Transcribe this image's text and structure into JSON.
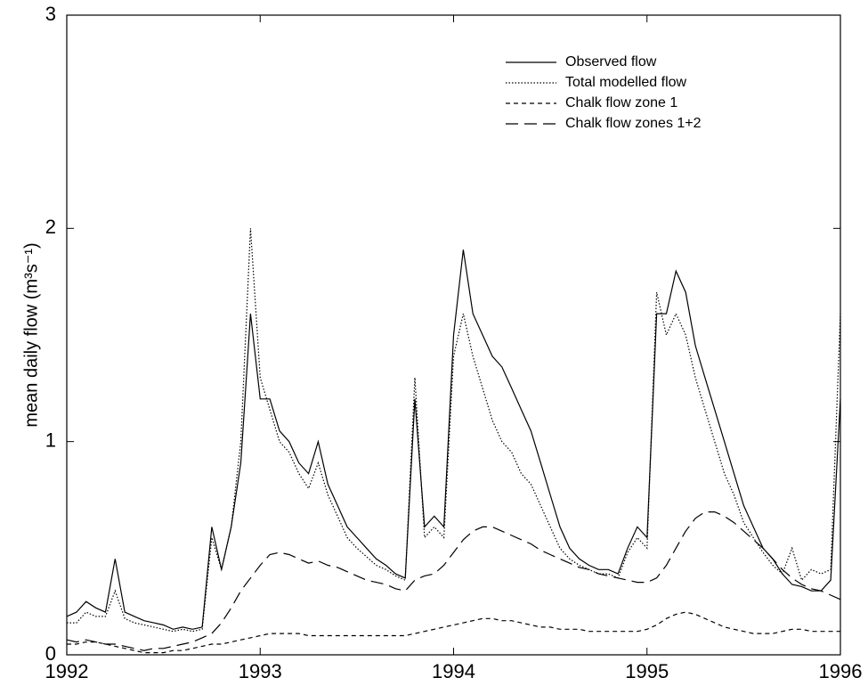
{
  "chart_data": {
    "type": "line",
    "ylabel": "mean daily flow (m³s⁻¹)",
    "x": [
      1992,
      1992.05,
      1992.1,
      1992.15,
      1992.2,
      1992.25,
      1992.3,
      1992.35,
      1992.4,
      1992.45,
      1992.5,
      1992.55,
      1992.6,
      1992.65,
      1992.7,
      1992.75,
      1992.8,
      1992.85,
      1992.9,
      1992.95,
      1993,
      1993.05,
      1993.1,
      1993.15,
      1993.2,
      1993.25,
      1993.3,
      1993.35,
      1993.4,
      1993.45,
      1993.5,
      1993.55,
      1993.6,
      1993.65,
      1993.7,
      1993.75,
      1993.8,
      1993.85,
      1993.9,
      1993.95,
      1994,
      1994.05,
      1994.1,
      1994.15,
      1994.2,
      1994.25,
      1994.3,
      1994.35,
      1994.4,
      1994.45,
      1994.5,
      1994.55,
      1994.6,
      1994.65,
      1994.7,
      1994.75,
      1994.8,
      1994.85,
      1994.9,
      1994.95,
      1995,
      1995.05,
      1995.1,
      1995.15,
      1995.2,
      1995.25,
      1995.3,
      1995.35,
      1995.4,
      1995.45,
      1995.5,
      1995.55,
      1995.6,
      1995.65,
      1995.7,
      1995.75,
      1995.8,
      1995.85,
      1995.9,
      1995.95,
      1996
    ],
    "series": [
      {
        "name": "Observed flow",
        "color": "#000000",
        "linestyle": "solid",
        "values": [
          0.18,
          0.2,
          0.25,
          0.22,
          0.2,
          0.45,
          0.2,
          0.18,
          0.16,
          0.15,
          0.14,
          0.12,
          0.13,
          0.12,
          0.13,
          0.6,
          0.4,
          0.6,
          0.9,
          1.6,
          1.2,
          1.2,
          1.05,
          1.0,
          0.9,
          0.85,
          1.0,
          0.8,
          0.7,
          0.6,
          0.55,
          0.5,
          0.45,
          0.42,
          0.38,
          0.36,
          1.2,
          0.6,
          0.65,
          0.6,
          1.5,
          1.9,
          1.6,
          1.5,
          1.4,
          1.35,
          1.25,
          1.15,
          1.05,
          0.9,
          0.75,
          0.6,
          0.5,
          0.45,
          0.42,
          0.4,
          0.4,
          0.38,
          0.5,
          0.6,
          0.55,
          1.6,
          1.6,
          1.8,
          1.7,
          1.45,
          1.3,
          1.15,
          1.0,
          0.85,
          0.7,
          0.6,
          0.5,
          0.45,
          0.38,
          0.33,
          0.32,
          0.3,
          0.3,
          0.35,
          1.2
        ]
      },
      {
        "name": "Total modelled flow",
        "color": "#000000",
        "linestyle": "dotted",
        "values": [
          0.15,
          0.15,
          0.2,
          0.18,
          0.18,
          0.3,
          0.17,
          0.15,
          0.14,
          0.13,
          0.12,
          0.11,
          0.12,
          0.11,
          0.12,
          0.55,
          0.4,
          0.6,
          1.0,
          2.0,
          1.3,
          1.15,
          1.0,
          0.95,
          0.85,
          0.78,
          0.9,
          0.75,
          0.65,
          0.55,
          0.5,
          0.46,
          0.42,
          0.4,
          0.37,
          0.35,
          1.3,
          0.55,
          0.6,
          0.55,
          1.4,
          1.6,
          1.4,
          1.25,
          1.1,
          1.0,
          0.95,
          0.85,
          0.8,
          0.7,
          0.6,
          0.5,
          0.45,
          0.42,
          0.4,
          0.38,
          0.38,
          0.36,
          0.48,
          0.55,
          0.5,
          1.7,
          1.5,
          1.6,
          1.5,
          1.3,
          1.15,
          1.0,
          0.85,
          0.75,
          0.62,
          0.55,
          0.48,
          0.42,
          0.38,
          0.5,
          0.35,
          0.4,
          0.38,
          0.4,
          1.6
        ]
      },
      {
        "name": "Chalk flow zone 1",
        "color": "#000000",
        "linestyle": "dashed",
        "values": [
          0.05,
          0.05,
          0.06,
          0.06,
          0.05,
          0.04,
          0.03,
          0.02,
          0.01,
          0.01,
          0.01,
          0.02,
          0.02,
          0.03,
          0.04,
          0.05,
          0.05,
          0.06,
          0.07,
          0.08,
          0.09,
          0.1,
          0.1,
          0.1,
          0.1,
          0.09,
          0.09,
          0.09,
          0.09,
          0.09,
          0.09,
          0.09,
          0.09,
          0.09,
          0.09,
          0.09,
          0.1,
          0.11,
          0.12,
          0.13,
          0.14,
          0.15,
          0.16,
          0.17,
          0.17,
          0.16,
          0.16,
          0.15,
          0.14,
          0.13,
          0.13,
          0.12,
          0.12,
          0.12,
          0.11,
          0.11,
          0.11,
          0.11,
          0.11,
          0.11,
          0.12,
          0.14,
          0.17,
          0.19,
          0.2,
          0.19,
          0.17,
          0.15,
          0.13,
          0.12,
          0.11,
          0.1,
          0.1,
          0.1,
          0.11,
          0.12,
          0.12,
          0.11,
          0.11,
          0.11,
          0.11
        ]
      },
      {
        "name": "Chalk flow zones 1+2",
        "color": "#000000",
        "linestyle": "longdashed",
        "values": [
          0.07,
          0.06,
          0.07,
          0.06,
          0.05,
          0.05,
          0.04,
          0.03,
          0.02,
          0.03,
          0.03,
          0.04,
          0.05,
          0.06,
          0.08,
          0.1,
          0.15,
          0.22,
          0.3,
          0.36,
          0.42,
          0.47,
          0.48,
          0.47,
          0.45,
          0.43,
          0.44,
          0.42,
          0.41,
          0.39,
          0.37,
          0.35,
          0.34,
          0.33,
          0.31,
          0.3,
          0.35,
          0.37,
          0.38,
          0.42,
          0.48,
          0.54,
          0.58,
          0.6,
          0.6,
          0.58,
          0.56,
          0.54,
          0.52,
          0.49,
          0.47,
          0.45,
          0.43,
          0.41,
          0.4,
          0.38,
          0.37,
          0.36,
          0.35,
          0.34,
          0.34,
          0.36,
          0.42,
          0.5,
          0.58,
          0.64,
          0.67,
          0.67,
          0.65,
          0.62,
          0.58,
          0.54,
          0.5,
          0.45,
          0.4,
          0.36,
          0.33,
          0.31,
          0.3,
          0.28,
          0.26
        ]
      }
    ],
    "xlim": [
      1992,
      1996
    ],
    "xticks": [
      1992,
      1993,
      1994,
      1995,
      1996
    ],
    "ylim": [
      0,
      3
    ],
    "yticks": [
      0,
      1,
      2,
      3
    ],
    "legend": "upper right"
  }
}
